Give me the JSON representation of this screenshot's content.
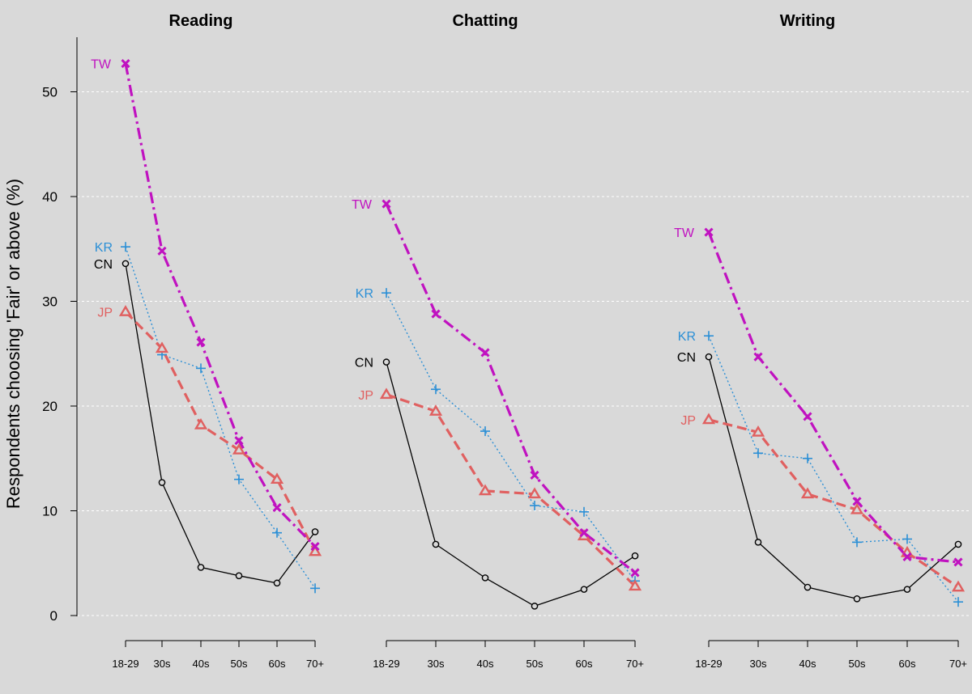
{
  "chart_data": {
    "type": "line",
    "ylabel": "Respondents choosing 'Fair' or above (%)",
    "ylim": [
      0,
      55
    ],
    "yticks": [
      0,
      10,
      20,
      30,
      40,
      50
    ],
    "categories": [
      "18-29",
      "30s",
      "40s",
      "50s",
      "60s",
      "70+"
    ],
    "grid": true,
    "series_styles": {
      "TW": {
        "color": "#c012c0",
        "dash": "dashdot",
        "marker": "x"
      },
      "KR": {
        "color": "#2b8fd6",
        "dash": "dotted",
        "marker": "plus"
      },
      "CN": {
        "color": "#000000",
        "dash": "solid",
        "marker": "circle"
      },
      "JP": {
        "color": "#e06060",
        "dash": "dashed",
        "marker": "triangle"
      }
    },
    "panels": [
      {
        "title": "Reading",
        "series": [
          {
            "name": "TW",
            "values": [
              52.7,
              34.8,
              26.1,
              16.7,
              10.3,
              6.6
            ]
          },
          {
            "name": "KR",
            "values": [
              35.2,
              24.9,
              23.6,
              13.0,
              7.9,
              2.6
            ]
          },
          {
            "name": "CN",
            "values": [
              33.6,
              12.7,
              4.6,
              3.8,
              3.1,
              8.0
            ]
          },
          {
            "name": "JP",
            "values": [
              29.0,
              25.5,
              18.2,
              15.8,
              13.0,
              6.1
            ]
          }
        ]
      },
      {
        "title": "Chatting",
        "series": [
          {
            "name": "TW",
            "values": [
              39.3,
              28.8,
              25.1,
              13.4,
              7.9,
              4.1
            ]
          },
          {
            "name": "KR",
            "values": [
              30.8,
              21.6,
              17.6,
              10.5,
              9.9,
              3.3
            ]
          },
          {
            "name": "CN",
            "values": [
              24.2,
              6.8,
              3.6,
              0.9,
              2.5,
              5.7
            ]
          },
          {
            "name": "JP",
            "values": [
              21.1,
              19.5,
              11.9,
              11.6,
              7.6,
              2.8
            ]
          }
        ]
      },
      {
        "title": "Writing",
        "series": [
          {
            "name": "TW",
            "values": [
              36.6,
              24.7,
              19.0,
              10.9,
              5.6,
              5.1
            ]
          },
          {
            "name": "KR",
            "values": [
              26.7,
              15.5,
              15.0,
              7.0,
              7.3,
              1.3
            ]
          },
          {
            "name": "CN",
            "values": [
              24.7,
              7.0,
              2.7,
              1.6,
              2.5,
              6.8
            ]
          },
          {
            "name": "JP",
            "values": [
              18.7,
              17.5,
              11.6,
              10.1,
              6.0,
              2.7
            ]
          }
        ]
      }
    ]
  }
}
